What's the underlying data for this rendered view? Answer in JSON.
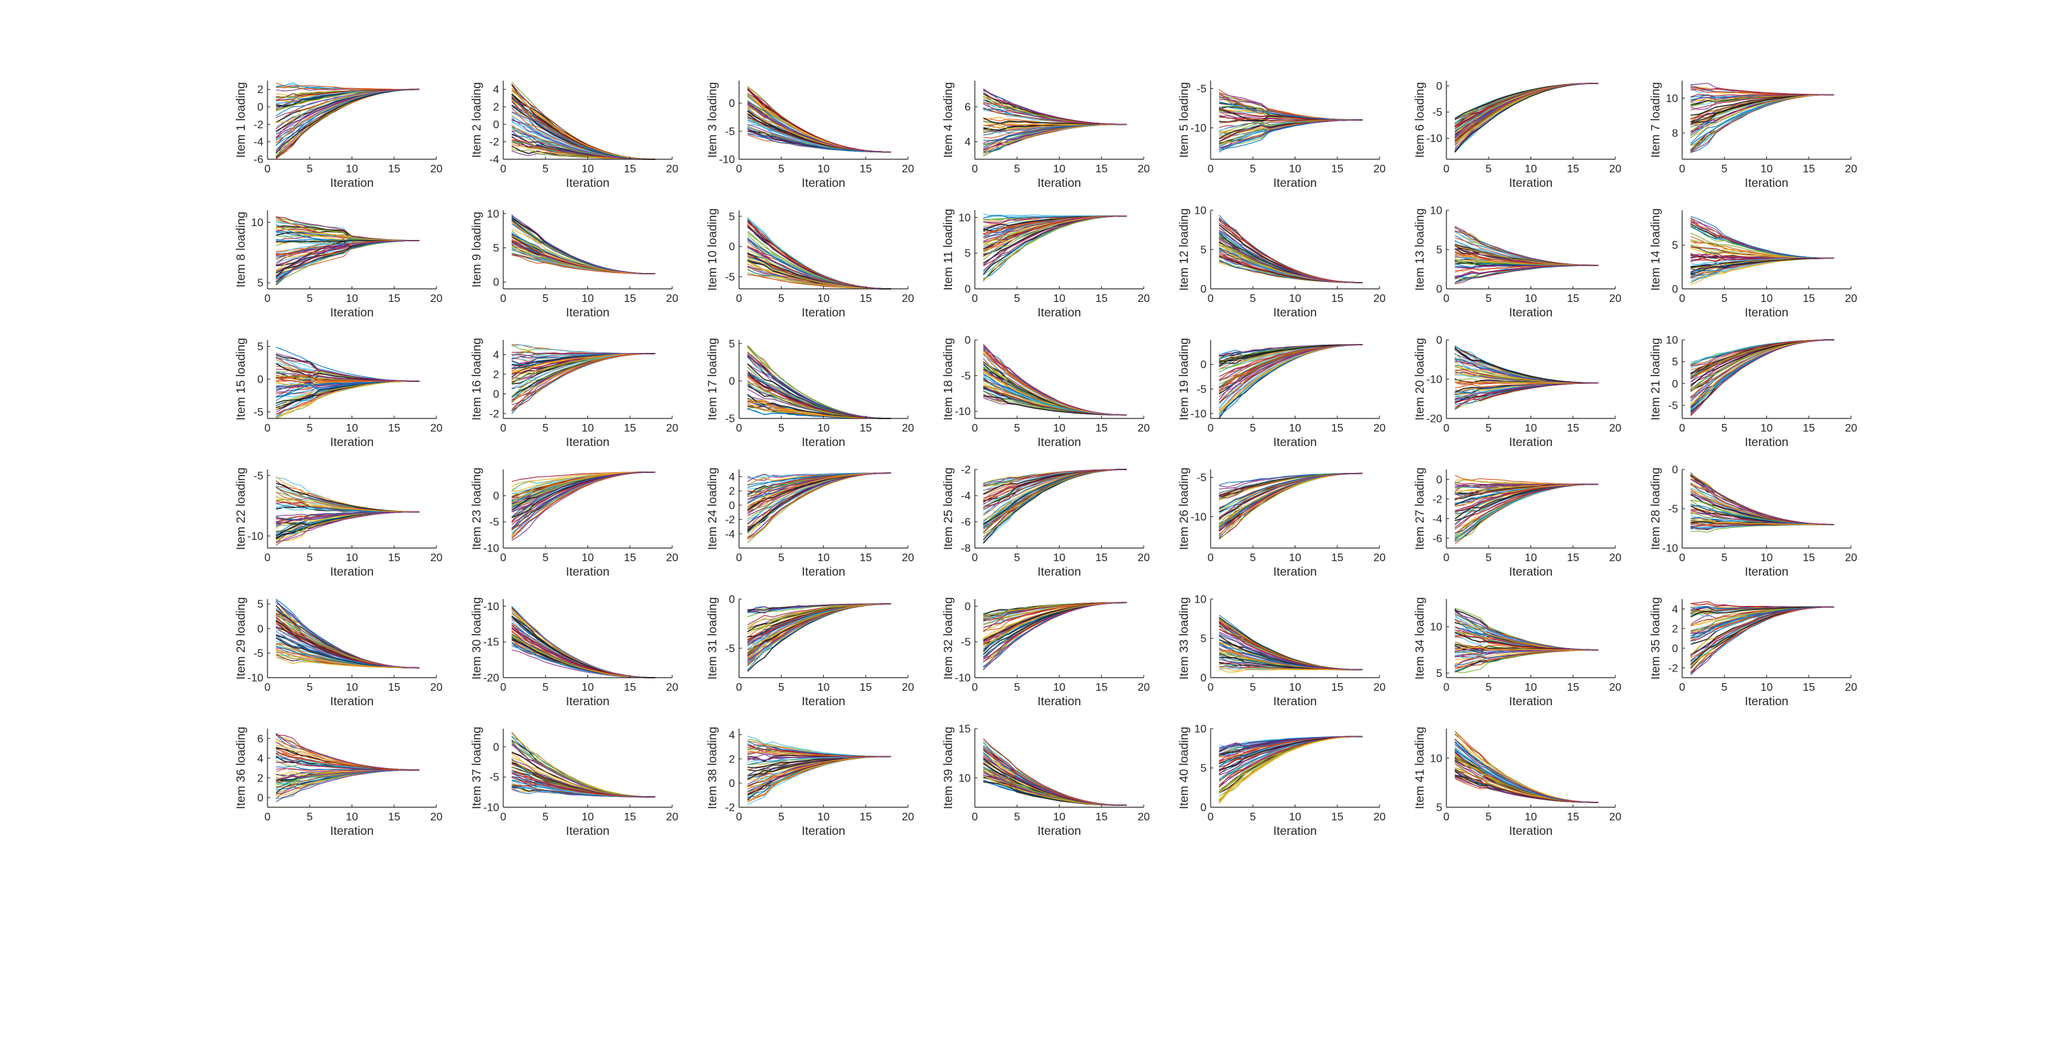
{
  "chart_data": {
    "type": "line",
    "layout": {
      "rows": 6,
      "cols": 7
    },
    "palette": [
      "#0072BD",
      "#D95319",
      "#EDB120",
      "#7E2F8E",
      "#77AC30",
      "#4DBEEE",
      "#A2142F"
    ],
    "x_range": [
      0,
      20
    ],
    "x_ticks": [
      0,
      5,
      10,
      15,
      20
    ],
    "x_label": "Iteration",
    "iterations": 18,
    "series_per_panel": 60,
    "panels": [
      {
        "ylabel": "Item 1 loading",
        "ylim": [
          -6,
          3
        ],
        "yticks": [
          -6,
          -4,
          -2,
          0,
          2
        ],
        "final": 2,
        "spread_start": [
          -6,
          3
        ],
        "peak_iter": 1
      },
      {
        "ylabel": "Item 2 loading",
        "ylim": [
          -4,
          5
        ],
        "yticks": [
          -4,
          -2,
          0,
          2,
          4
        ],
        "final": -4,
        "spread_start": [
          -3,
          5
        ],
        "peak_iter": 1
      },
      {
        "ylabel": "Item 3 loading",
        "ylim": [
          -10,
          4
        ],
        "yticks": [
          -10,
          -5,
          0
        ],
        "final": -8.7,
        "spread_start": [
          -6,
          3
        ],
        "peak_iter": 1
      },
      {
        "ylabel": "Item 4 loading",
        "ylim": [
          3,
          7.5
        ],
        "yticks": [
          4,
          6
        ],
        "final": 5.0,
        "spread_start": [
          3.2,
          7
        ],
        "peak_iter": 1
      },
      {
        "ylabel": "Item 5 loading",
        "ylim": [
          -14,
          -4
        ],
        "yticks": [
          -10,
          -5
        ],
        "final": -9.0,
        "spread_start": [
          -13,
          -5
        ],
        "peak_iter": 4
      },
      {
        "ylabel": "Item 6 loading",
        "ylim": [
          -14,
          1
        ],
        "yticks": [
          -10,
          -5,
          0
        ],
        "final": 0.5,
        "spread_start": [
          -13,
          -6
        ],
        "peak_iter": 1
      },
      {
        "ylabel": "Item 7 loading",
        "ylim": [
          6.5,
          11
        ],
        "yticks": [
          8,
          10
        ],
        "final": 10.2,
        "spread_start": [
          6.8,
          10.8
        ],
        "peak_iter": 1
      },
      {
        "ylabel": "Item 8 loading",
        "ylim": [
          4.5,
          11
        ],
        "yticks": [
          5,
          10
        ],
        "final": 8.5,
        "spread_start": [
          4.8,
          10.5
        ],
        "peak_iter": 7
      },
      {
        "ylabel": "Item 9 loading",
        "ylim": [
          -1,
          10.5
        ],
        "yticks": [
          0,
          5,
          10
        ],
        "final": 1.2,
        "spread_start": [
          4,
          10
        ],
        "peak_iter": 2
      },
      {
        "ylabel": "Item 10 loading",
        "ylim": [
          -7,
          6
        ],
        "yticks": [
          -5,
          0,
          5
        ],
        "final": -7,
        "spread_start": [
          -5,
          5
        ],
        "peak_iter": 1
      },
      {
        "ylabel": "Item 11 loading",
        "ylim": [
          0,
          11
        ],
        "yticks": [
          0,
          5,
          10
        ],
        "final": 10.2,
        "spread_start": [
          1,
          10.5
        ],
        "peak_iter": 1
      },
      {
        "ylabel": "Item 12 loading",
        "ylim": [
          0,
          10
        ],
        "yticks": [
          0,
          5,
          10
        ],
        "final": 0.8,
        "spread_start": [
          3,
          9.5
        ],
        "peak_iter": 1
      },
      {
        "ylabel": "Item 13 loading",
        "ylim": [
          0,
          10
        ],
        "yticks": [
          0,
          5,
          10
        ],
        "final": 3.0,
        "spread_start": [
          0.5,
          8
        ],
        "peak_iter": 1
      },
      {
        "ylabel": "Item 14 loading",
        "ylim": [
          0,
          9
        ],
        "yticks": [
          0,
          5
        ],
        "final": 3.5,
        "spread_start": [
          0.5,
          8.5
        ],
        "peak_iter": 2
      },
      {
        "ylabel": "Item 15 loading",
        "ylim": [
          -6,
          6
        ],
        "yticks": [
          -5,
          0,
          5
        ],
        "final": -0.3,
        "spread_start": [
          -6,
          5
        ],
        "peak_iter": 3
      },
      {
        "ylabel": "Item 16 loading",
        "ylim": [
          -2.5,
          5.5
        ],
        "yticks": [
          -2,
          0,
          2,
          4
        ],
        "final": 4.1,
        "spread_start": [
          -2,
          5
        ],
        "peak_iter": 1
      },
      {
        "ylabel": "Item 17 loading",
        "ylim": [
          -5,
          5.5
        ],
        "yticks": [
          -5,
          0,
          5
        ],
        "final": -5,
        "spread_start": [
          -4,
          5
        ],
        "peak_iter": 1
      },
      {
        "ylabel": "Item 18 loading",
        "ylim": [
          -11,
          0
        ],
        "yticks": [
          -10,
          -5,
          0
        ],
        "final": -10.5,
        "spread_start": [
          -8,
          -0.5
        ],
        "peak_iter": 1
      },
      {
        "ylabel": "Item 19 loading",
        "ylim": [
          -11,
          5
        ],
        "yticks": [
          -10,
          -5,
          0
        ],
        "final": 4,
        "spread_start": [
          -11,
          2
        ],
        "peak_iter": 1
      },
      {
        "ylabel": "Item 20 loading",
        "ylim": [
          -20,
          0
        ],
        "yticks": [
          -20,
          -10,
          0
        ],
        "final": -11,
        "spread_start": [
          -18,
          -1
        ],
        "peak_iter": 1
      },
      {
        "ylabel": "Item 21 loading",
        "ylim": [
          -8,
          10
        ],
        "yticks": [
          -5,
          0,
          5,
          10
        ],
        "final": 10,
        "spread_start": [
          -8,
          5
        ],
        "peak_iter": 1
      },
      {
        "ylabel": "Item 22 loading",
        "ylim": [
          -11,
          -4.5
        ],
        "yticks": [
          -10,
          -5
        ],
        "final": -8.0,
        "spread_start": [
          -10.8,
          -5
        ],
        "peak_iter": 2
      },
      {
        "ylabel": "Item 23 loading",
        "ylim": [
          -10,
          5
        ],
        "yticks": [
          -10,
          -5,
          0
        ],
        "final": 4.5,
        "spread_start": [
          -9,
          3
        ],
        "peak_iter": 1
      },
      {
        "ylabel": "Item 24 loading",
        "ylim": [
          -6,
          5
        ],
        "yticks": [
          -4,
          -2,
          0,
          2,
          4
        ],
        "final": 4.5,
        "spread_start": [
          -5.5,
          4
        ],
        "peak_iter": 1
      },
      {
        "ylabel": "Item 25 loading",
        "ylim": [
          -8,
          -2
        ],
        "yticks": [
          -8,
          -6,
          -4,
          -2
        ],
        "final": -2.0,
        "spread_start": [
          -7.8,
          -3
        ],
        "peak_iter": 2
      },
      {
        "ylabel": "Item 26 loading",
        "ylim": [
          -14,
          -4
        ],
        "yticks": [
          -10,
          -5
        ],
        "final": -4.5,
        "spread_start": [
          -13,
          -6
        ],
        "peak_iter": 1
      },
      {
        "ylabel": "Item 27 loading",
        "ylim": [
          -7,
          1
        ],
        "yticks": [
          -6,
          -4,
          -2,
          0
        ],
        "final": -0.5,
        "spread_start": [
          -6.5,
          0.5
        ],
        "peak_iter": 1
      },
      {
        "ylabel": "Item 28 loading",
        "ylim": [
          -10,
          0
        ],
        "yticks": [
          -10,
          -5,
          0
        ],
        "final": -7,
        "spread_start": [
          -8,
          -0.5
        ],
        "peak_iter": 1
      },
      {
        "ylabel": "Item 29 loading",
        "ylim": [
          -10,
          6
        ],
        "yticks": [
          -10,
          -5,
          0,
          5
        ],
        "final": -8,
        "spread_start": [
          -6,
          6
        ],
        "peak_iter": 1
      },
      {
        "ylabel": "Item 30 loading",
        "ylim": [
          -20,
          -9
        ],
        "yticks": [
          -20,
          -15,
          -10
        ],
        "final": -20,
        "spread_start": [
          -16,
          -10
        ],
        "peak_iter": 1
      },
      {
        "ylabel": "Item 31 loading",
        "ylim": [
          -8,
          0
        ],
        "yticks": [
          -5,
          0
        ],
        "final": -0.5,
        "spread_start": [
          -7.5,
          -1
        ],
        "peak_iter": 1
      },
      {
        "ylabel": "Item 32 loading",
        "ylim": [
          -10,
          1
        ],
        "yticks": [
          -10,
          -5,
          0
        ],
        "final": 0.5,
        "spread_start": [
          -9,
          -1
        ],
        "peak_iter": 1
      },
      {
        "ylabel": "Item 33 loading",
        "ylim": [
          0,
          10
        ],
        "yticks": [
          0,
          5,
          10
        ],
        "final": 1.0,
        "spread_start": [
          1,
          8
        ],
        "peak_iter": 1
      },
      {
        "ylabel": "Item 34 loading",
        "ylim": [
          4.5,
          13
        ],
        "yticks": [
          5,
          10
        ],
        "final": 7.5,
        "spread_start": [
          5,
          12.5
        ],
        "peak_iter": 2
      },
      {
        "ylabel": "Item 35 loading",
        "ylim": [
          -3,
          5
        ],
        "yticks": [
          -2,
          0,
          2,
          4
        ],
        "final": 4.2,
        "spread_start": [
          -2.8,
          4.5
        ],
        "peak_iter": 1
      },
      {
        "ylabel": "Item 36 loading",
        "ylim": [
          -1,
          7
        ],
        "yticks": [
          0,
          2,
          4,
          6
        ],
        "final": 2.8,
        "spread_start": [
          -0.5,
          6.5
        ],
        "peak_iter": 1
      },
      {
        "ylabel": "Item 37 loading",
        "ylim": [
          -10,
          3
        ],
        "yticks": [
          -10,
          -5,
          0
        ],
        "final": -8.3,
        "spread_start": [
          -7,
          2.5
        ],
        "peak_iter": 1
      },
      {
        "ylabel": "Item 38 loading",
        "ylim": [
          -2,
          4.5
        ],
        "yticks": [
          -2,
          0,
          2,
          4
        ],
        "final": 2.2,
        "spread_start": [
          -1.8,
          4
        ],
        "peak_iter": 1
      },
      {
        "ylabel": "Item 39 loading",
        "ylim": [
          7,
          15
        ],
        "yticks": [
          10,
          15
        ],
        "final": 7.2,
        "spread_start": [
          9.5,
          14
        ],
        "peak_iter": 2
      },
      {
        "ylabel": "Item 40 loading",
        "ylim": [
          0,
          10
        ],
        "yticks": [
          0,
          5,
          10
        ],
        "final": 9.0,
        "spread_start": [
          0.5,
          8
        ],
        "peak_iter": 1
      },
      {
        "ylabel": "Item 41 loading",
        "ylim": [
          5,
          13
        ],
        "yticks": [
          5,
          10
        ],
        "final": 5.5,
        "spread_start": [
          8,
          12.8
        ],
        "peak_iter": 2
      }
    ]
  }
}
